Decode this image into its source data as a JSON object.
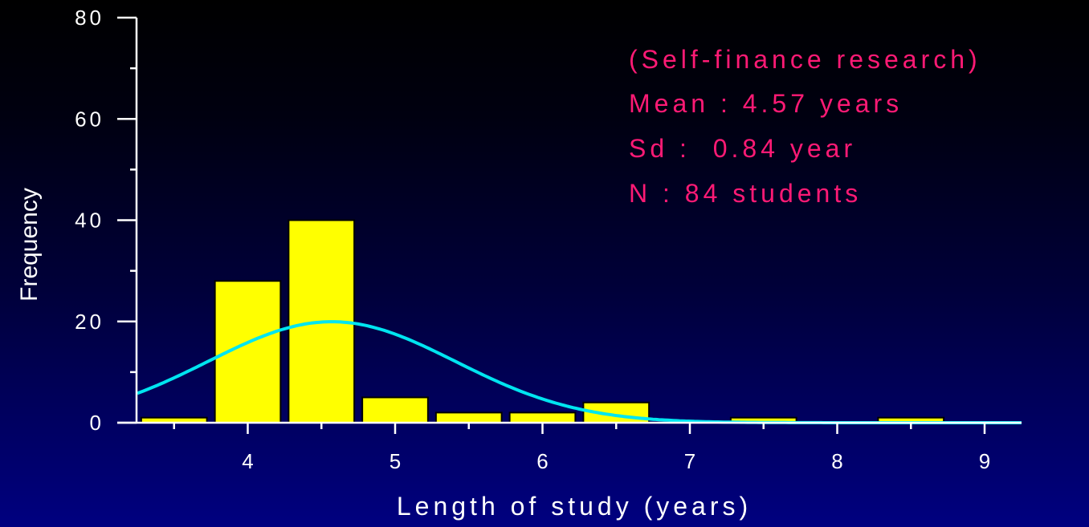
{
  "chart_data": {
    "type": "bar",
    "xlabel": "Length of study (years)",
    "ylabel": "Frequency",
    "ylim": [
      0,
      80
    ],
    "xlim": [
      3.3,
      9.25
    ],
    "y_ticks_labeled": [
      "0",
      "20",
      "40",
      "60",
      "80"
    ],
    "x_ticks_labeled": [
      "4",
      "5",
      "6",
      "7",
      "8",
      "9"
    ],
    "bin_width": 0.5,
    "bins": [
      {
        "x": 3.5,
        "value": 1
      },
      {
        "x": 4.0,
        "value": 28
      },
      {
        "x": 4.5,
        "value": 40
      },
      {
        "x": 5.0,
        "value": 5
      },
      {
        "x": 5.5,
        "value": 2
      },
      {
        "x": 6.0,
        "value": 2
      },
      {
        "x": 6.5,
        "value": 4
      },
      {
        "x": 7.0,
        "value": 0
      },
      {
        "x": 7.5,
        "value": 1
      },
      {
        "x": 8.0,
        "value": 0
      },
      {
        "x": 8.5,
        "value": 1
      }
    ],
    "normal_curve": {
      "mean": 4.57,
      "sd": 0.84,
      "n": 84
    },
    "annotations": [
      "(Self-finance research)",
      "Mean : 4.57 years",
      "Sd :  0.84 year",
      "N : 84 students"
    ],
    "grid": false,
    "colors": {
      "bar_fill": "#ffff00",
      "bar_stroke": "#000000",
      "curve": "#00e5f0",
      "axis": "#ffffff",
      "annotation": "#ff1a75",
      "tick_label": "#ffffff"
    }
  }
}
